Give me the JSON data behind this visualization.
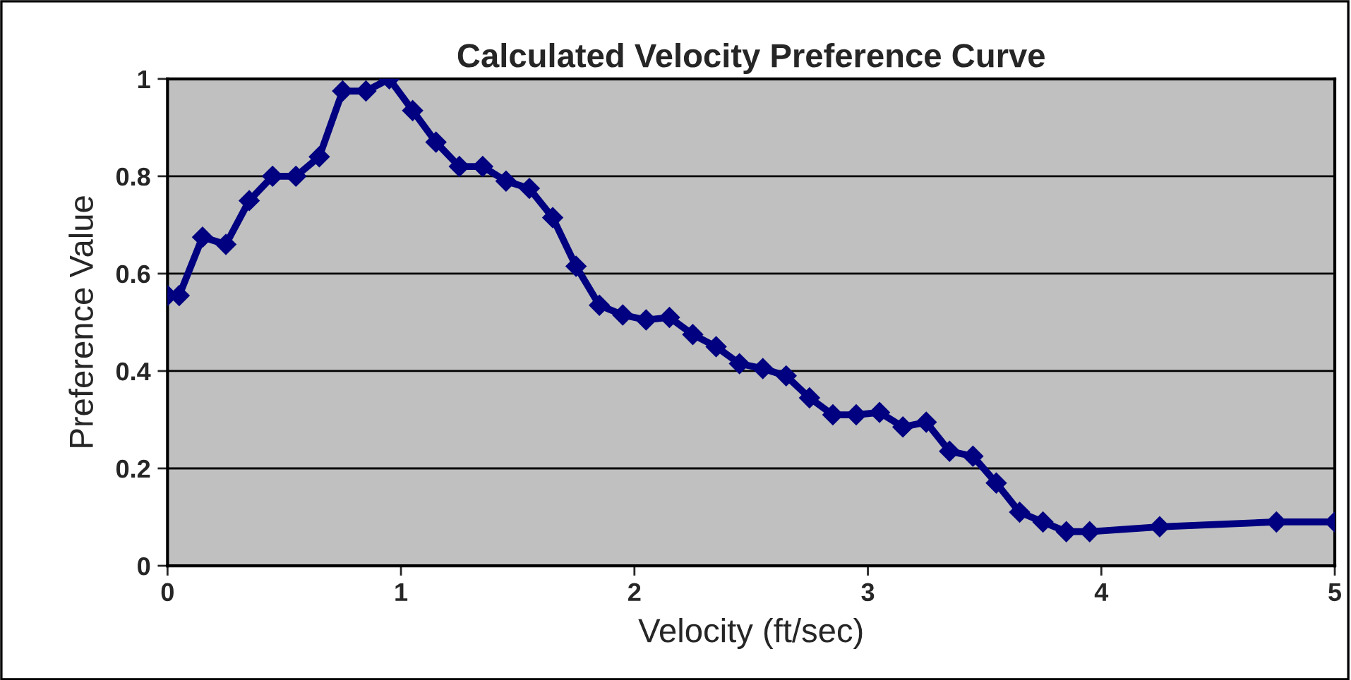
{
  "chart_data": {
    "type": "line",
    "title": "Calculated Velocity Preference Curve",
    "xlabel": "Velocity (ft/sec)",
    "ylabel": "Preference Value",
    "x": [
      0,
      0.05,
      0.15,
      0.25,
      0.35,
      0.45,
      0.55,
      0.65,
      0.75,
      0.85,
      0.95,
      1.05,
      1.15,
      1.25,
      1.35,
      1.45,
      1.55,
      1.65,
      1.75,
      1.85,
      1.95,
      2.05,
      2.15,
      2.25,
      2.35,
      2.45,
      2.55,
      2.65,
      2.75,
      2.85,
      2.95,
      3.05,
      3.15,
      3.25,
      3.35,
      3.45,
      3.55,
      3.65,
      3.75,
      3.85,
      3.95,
      4.25,
      4.75,
      5.0
    ],
    "series": [
      {
        "color": "#000080",
        "values": [
          0.555,
          0.555,
          0.675,
          0.66,
          0.75,
          0.8,
          0.8,
          0.84,
          0.975,
          0.975,
          1.0,
          0.935,
          0.87,
          0.82,
          0.82,
          0.79,
          0.775,
          0.715,
          0.615,
          0.535,
          0.515,
          0.505,
          0.51,
          0.475,
          0.45,
          0.415,
          0.405,
          0.39,
          0.345,
          0.31,
          0.31,
          0.315,
          0.285,
          0.295,
          0.235,
          0.225,
          0.17,
          0.11,
          0.09,
          0.07,
          0.07,
          0.08,
          0.09,
          0.09
        ]
      }
    ],
    "xlim": [
      0,
      5
    ],
    "xticks": [
      0,
      1,
      2,
      3,
      4,
      5
    ],
    "ylim": [
      0,
      1
    ],
    "yticks": [
      0,
      0.2,
      0.4,
      0.6,
      0.8,
      1
    ],
    "grid": "y",
    "marker": "diamond",
    "line_style": "solid",
    "legend": false
  }
}
